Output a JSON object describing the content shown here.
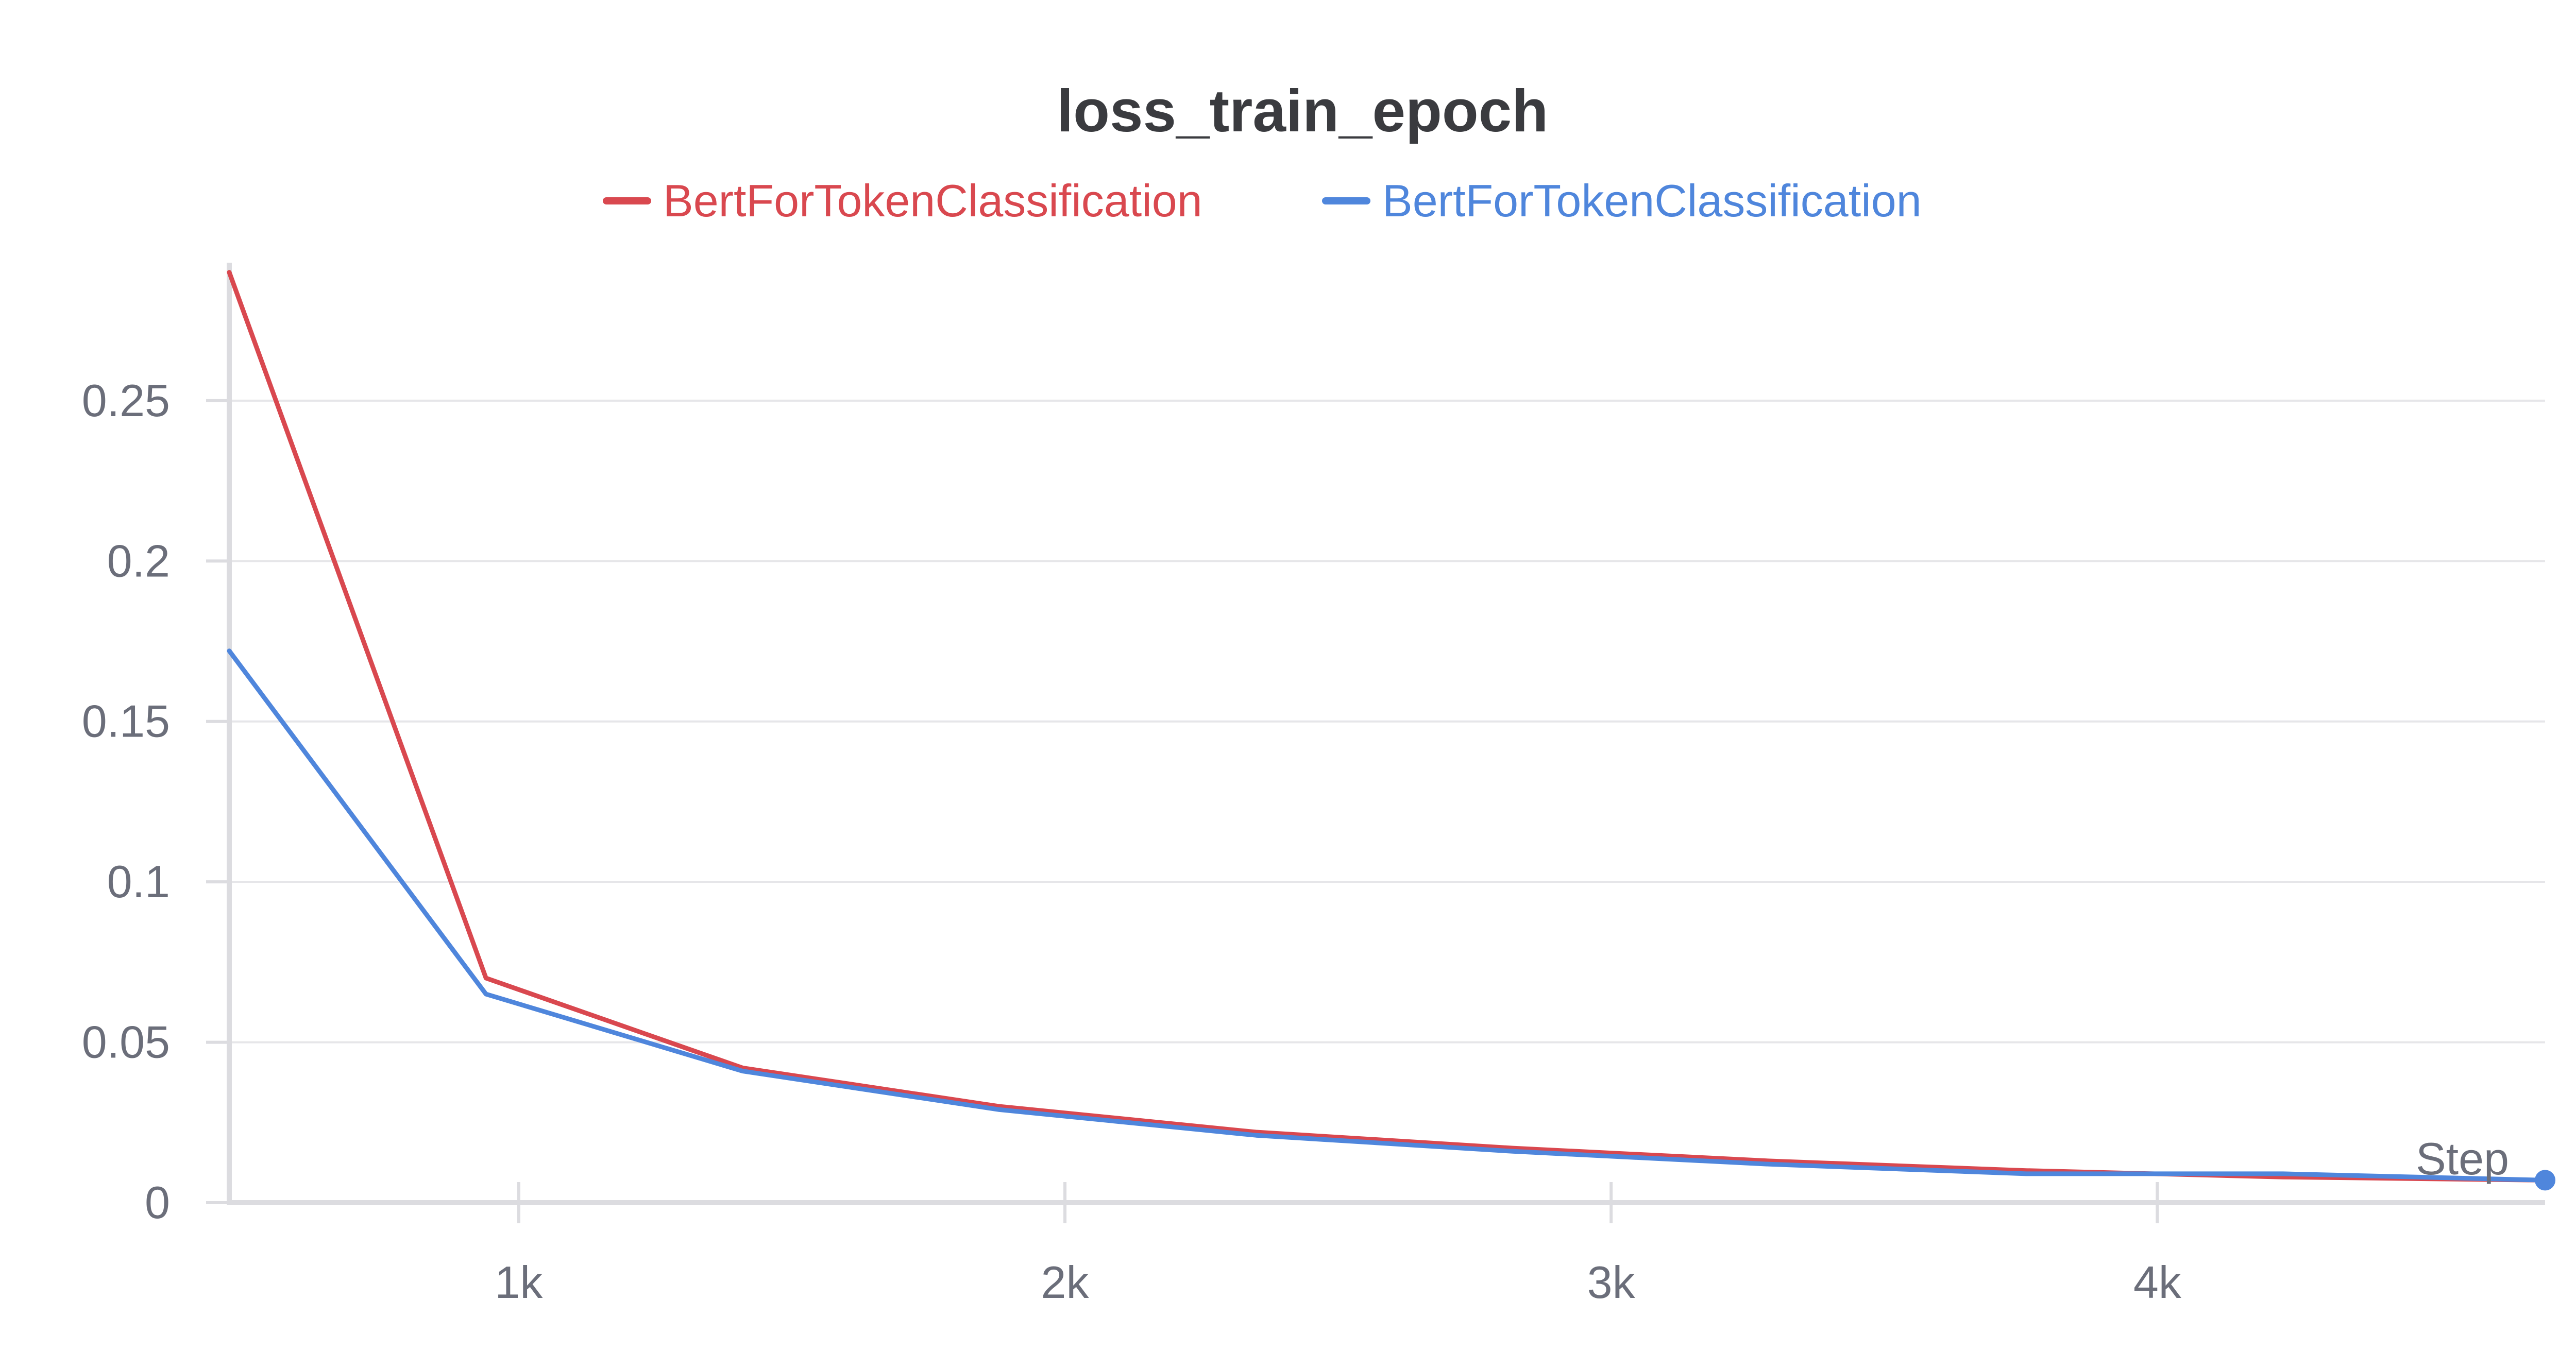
{
  "chart_data": {
    "type": "line",
    "title": "loss_train_epoch",
    "xlabel": "Step",
    "ylabel": "",
    "xlim": [
      470,
      4710
    ],
    "ylim": [
      0,
      0.293
    ],
    "x_ticks": [
      {
        "value": 1000,
        "label": "1k"
      },
      {
        "value": 2000,
        "label": "2k"
      },
      {
        "value": 3000,
        "label": "3k"
      },
      {
        "value": 4000,
        "label": "4k"
      }
    ],
    "y_ticks": [
      {
        "value": 0,
        "label": "0"
      },
      {
        "value": 0.05,
        "label": "0.05"
      },
      {
        "value": 0.1,
        "label": "0.1"
      },
      {
        "value": 0.15,
        "label": "0.15"
      },
      {
        "value": 0.2,
        "label": "0.2"
      },
      {
        "value": 0.25,
        "label": "0.25"
      }
    ],
    "grid": true,
    "legend_position": "top-center",
    "series": [
      {
        "name": "BertForTokenClassification",
        "color": "#d9484f",
        "x": [
          470,
          940,
          1410,
          1880,
          2350,
          2820,
          3290,
          3760,
          4230,
          4710
        ],
        "y": [
          0.29,
          0.07,
          0.042,
          0.03,
          0.022,
          0.017,
          0.013,
          0.01,
          0.008,
          0.007
        ]
      },
      {
        "name": "BertForTokenClassification",
        "color": "#4f86dc",
        "x": [
          470,
          940,
          1410,
          1880,
          2350,
          2820,
          3290,
          3760,
          4230,
          4710
        ],
        "y": [
          0.172,
          0.065,
          0.041,
          0.029,
          0.021,
          0.016,
          0.012,
          0.009,
          0.009,
          0.007
        ]
      }
    ]
  }
}
